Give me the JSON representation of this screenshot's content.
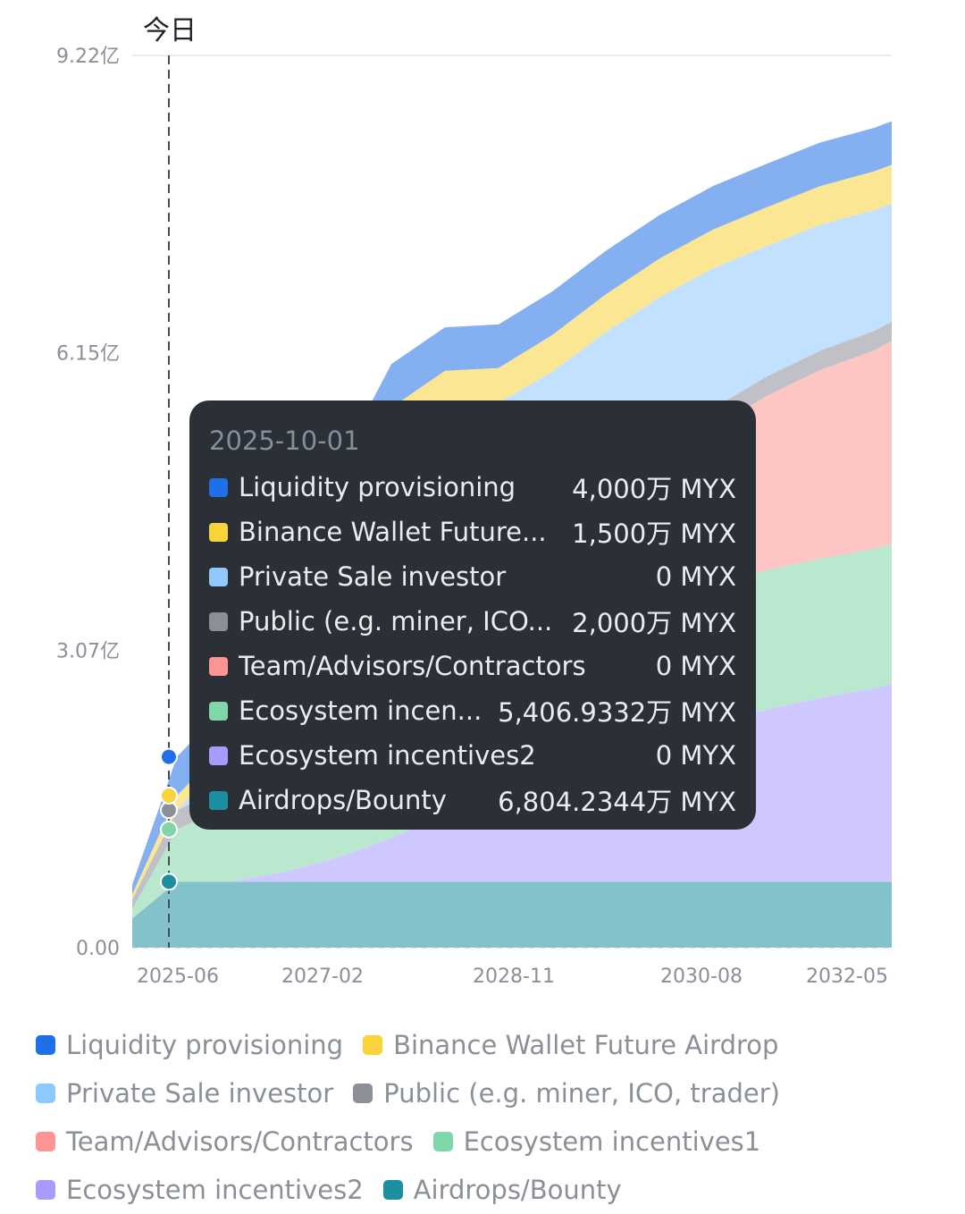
{
  "header": {
    "today_label": "今日"
  },
  "tooltip": {
    "date": "2025-10-01",
    "rows": [
      {
        "name": "Liquidity provisioning",
        "value": "4,000万 MYX",
        "color": "#1f6fe6"
      },
      {
        "name": "Binance Wallet Future...",
        "value": "1,500万 MYX",
        "color": "#f8d33a"
      },
      {
        "name": "Private Sale investor",
        "value": "0 MYX",
        "color": "#8fc8ff"
      },
      {
        "name": "Public (e.g. miner, ICO...",
        "value": "2,000万 MYX",
        "color": "#8a8f98"
      },
      {
        "name": "Team/Advisors/Contractors",
        "value": "0 MYX",
        "color": "#fd9595"
      },
      {
        "name": "Ecosystem incen...",
        "value": "5,406.9332万 MYX",
        "color": "#7fd6a8"
      },
      {
        "name": "Ecosystem incentives2",
        "value": "0 MYX",
        "color": "#a89bff"
      },
      {
        "name": "Airdrops/Bounty",
        "value": "6,804.2344万 MYX",
        "color": "#1e8fa0"
      }
    ]
  },
  "legend": {
    "items": [
      {
        "name": "Liquidity provisioning",
        "color": "#1f6fe6"
      },
      {
        "name": "Binance Wallet Future Airdrop",
        "color": "#f8d33a"
      },
      {
        "name": "Private Sale investor",
        "color": "#8fc8ff"
      },
      {
        "name": "Public (e.g. miner, ICO, trader)",
        "color": "#8a8f98"
      },
      {
        "name": "Team/Advisors/Contractors",
        "color": "#fd9595"
      },
      {
        "name": "Ecosystem incentives1",
        "color": "#7fd6a8"
      },
      {
        "name": "Ecosystem incentives2",
        "color": "#a89bff"
      },
      {
        "name": "Airdrops/Bounty",
        "color": "#1e8fa0"
      }
    ]
  },
  "chart_data": {
    "type": "area",
    "stacked": true,
    "title": "",
    "xlabel": "",
    "ylabel": "",
    "unit": "MYX",
    "yticks": [
      "0.00",
      "3.07亿",
      "6.15亿",
      "9.22亿"
    ],
    "ytick_values": [
      0,
      307000000,
      615000000,
      922000000
    ],
    "ylim": [
      0,
      922000000
    ],
    "xticks": [
      "2025-06",
      "2027-02",
      "2028-11",
      "2030-08",
      "2032-05"
    ],
    "xlim": [
      "2025-05",
      "2032-06"
    ],
    "today_marker": "2025-10",
    "grid": "top line only",
    "legend_position": "bottom",
    "x": [
      "2025-05",
      "2025-10",
      "2026-04",
      "2026-10",
      "2027-04",
      "2027-10",
      "2028-04",
      "2028-10",
      "2029-04",
      "2029-10",
      "2030-04",
      "2030-10",
      "2031-04",
      "2031-10",
      "2032-04",
      "2032-06"
    ],
    "series": [
      {
        "name": "Airdrops/Bounty",
        "color": "#1e8fa0",
        "values": [
          30000000,
          68042344,
          68042344,
          68042344,
          68042344,
          68042344,
          68042344,
          68042344,
          68042344,
          68042344,
          68042344,
          68042344,
          68042344,
          68042344,
          68042344,
          68042344
        ]
      },
      {
        "name": "Ecosystem incentives2",
        "color": "#a89bff",
        "values": [
          0,
          0,
          0,
          10000000,
          25000000,
          45000000,
          70000000,
          95000000,
          115000000,
          135000000,
          150000000,
          165000000,
          178000000,
          190000000,
          200000000,
          205000000
        ]
      },
      {
        "name": "Ecosystem incentives1",
        "color": "#7fd6a8",
        "values": [
          10000000,
          54069332,
          80000000,
          100000000,
          115000000,
          125000000,
          135000000,
          140000000,
          142000000,
          143000000,
          144000000,
          144000000,
          144000000,
          144000000,
          144000000,
          144000000
        ]
      },
      {
        "name": "Team/Advisors/Contractors",
        "color": "#fd9595",
        "values": [
          0,
          0,
          0,
          0,
          0,
          0,
          0,
          10000000,
          50000000,
          90000000,
          130000000,
          160000000,
          180000000,
          195000000,
          205000000,
          210000000
        ]
      },
      {
        "name": "Public (e.g. miner, ICO, trader)",
        "color": "#8a8f98",
        "values": [
          10000000,
          20000000,
          20000000,
          20000000,
          20000000,
          20000000,
          20000000,
          20000000,
          20000000,
          20000000,
          20000000,
          20000000,
          20000000,
          20000000,
          20000000,
          20000000
        ]
      },
      {
        "name": "Private Sale investor",
        "color": "#8fc8ff",
        "values": [
          0,
          0,
          30000000,
          100000000,
          200000000,
          270000000,
          270000000,
          230000000,
          200000000,
          180000000,
          160000000,
          145000000,
          135000000,
          130000000,
          125000000,
          122000000
        ]
      },
      {
        "name": "Binance Wallet Future Airdrop",
        "color": "#f8d33a",
        "values": [
          5000000,
          15000000,
          15000000,
          20000000,
          25000000,
          30000000,
          33000000,
          36000000,
          38000000,
          39000000,
          40000000,
          40000000,
          40000000,
          40000000,
          40000000,
          40000000
        ]
      },
      {
        "name": "Liquidity provisioning",
        "color": "#1f6fe6",
        "values": [
          10000000,
          40000000,
          42000000,
          44000000,
          44000000,
          45000000,
          45000000,
          45000000,
          45000000,
          45000000,
          45000000,
          45000000,
          45000000,
          45000000,
          45000000,
          45000000
        ]
      }
    ]
  }
}
